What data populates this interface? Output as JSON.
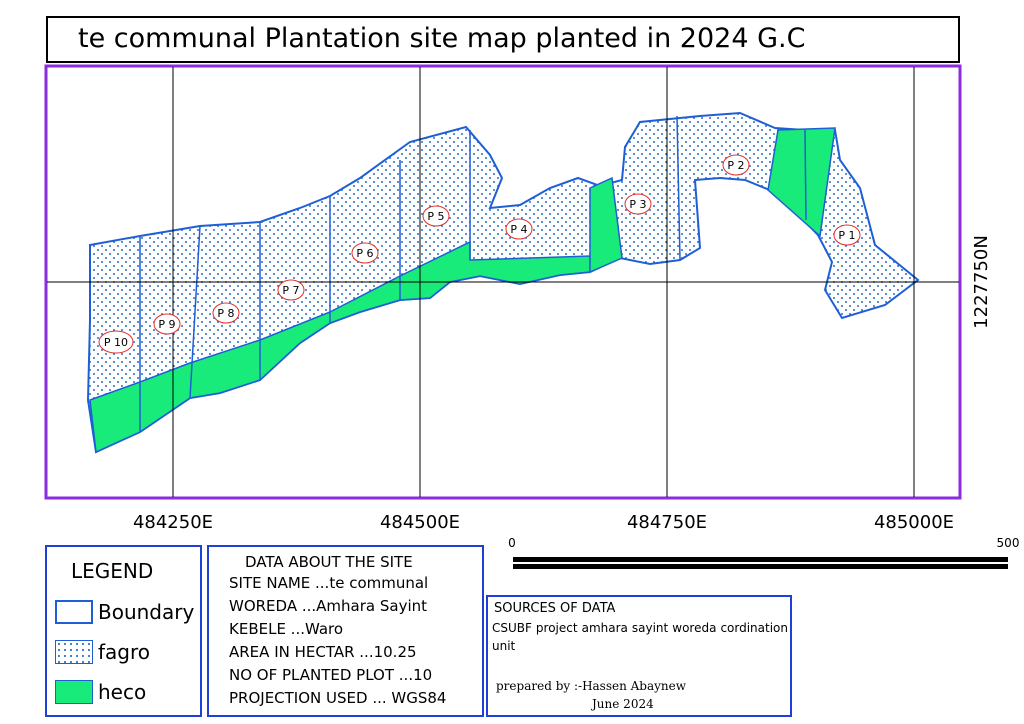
{
  "title": "te communal Plantation site map planted in 2024 G.C",
  "grid": {
    "x_labels": [
      "484250E",
      "484500E",
      "484750E",
      "485000E"
    ],
    "y_label": "1227750N"
  },
  "plots": [
    "P 1",
    "P 2",
    "P 3",
    "P 4",
    "P 5",
    "P 6",
    "P 7",
    "P 8",
    "P 9",
    "P 10"
  ],
  "scale_bar": {
    "start": "0",
    "end": "500"
  },
  "legend": {
    "title": "LEGEND",
    "items": [
      {
        "label": "Boundary",
        "kind": "boundary"
      },
      {
        "label": "fagro",
        "kind": "fagro"
      },
      {
        "label": "heco",
        "kind": "heco"
      }
    ]
  },
  "site_info": {
    "title": "DATA ABOUT THE SITE",
    "lines": [
      "SITE NAME ...te communal",
      "WOREDA ...Amhara Sayint",
      "KEBELE ...Waro",
      "AREA IN HECTAR ...10.25",
      "NO OF PLANTED PLOT ...10",
      "PROJECTION USED ... WGS84"
    ]
  },
  "sources": {
    "title": "SOURCES OF DATA",
    "text": "CSUBF project amhara sayint woreda cordination unit",
    "prepared_by": "prepared by :-Hassen Abaynew",
    "date": "June 2024"
  },
  "colors": {
    "frame": "#8b2be2",
    "boundary": "#1f5fd6",
    "heco": "#19eb7a",
    "fagro_dot": "#2a6fc7",
    "panel_border": "#1f3fd6"
  }
}
